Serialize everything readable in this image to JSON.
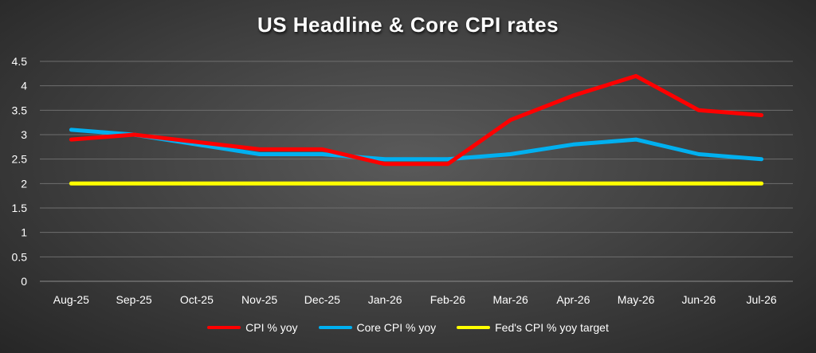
{
  "chart_data": {
    "type": "line",
    "title": "US Headline & Core CPI rates",
    "xlabel": "",
    "ylabel": "",
    "categories": [
      "Aug-25",
      "Sep-25",
      "Oct-25",
      "Nov-25",
      "Dec-25",
      "Jan-26",
      "Feb-26",
      "Mar-26",
      "Apr-26",
      "May-26",
      "Jun-26",
      "Jul-26"
    ],
    "ylim": [
      0,
      4.5
    ],
    "yticks": [
      "0",
      "0.5",
      "1",
      "1.5",
      "2",
      "2.5",
      "3",
      "3.5",
      "4",
      "4.5"
    ],
    "grid": true,
    "legend_position": "bottom",
    "series": [
      {
        "name": "CPI % yoy",
        "color": "#ff0000",
        "values": [
          2.9,
          3.0,
          2.85,
          2.7,
          2.7,
          2.4,
          2.4,
          3.3,
          3.8,
          4.2,
          3.5,
          3.4
        ]
      },
      {
        "name": "Core CPI % yoy",
        "color": "#00b0f0",
        "values": [
          3.1,
          3.0,
          2.8,
          2.6,
          2.6,
          2.5,
          2.5,
          2.6,
          2.8,
          2.9,
          2.6,
          2.5
        ]
      },
      {
        "name": "Fed's CPI % yoy target",
        "color": "#ffff00",
        "values": [
          2,
          2,
          2,
          2,
          2,
          2,
          2,
          2,
          2,
          2,
          2,
          2
        ]
      }
    ]
  }
}
